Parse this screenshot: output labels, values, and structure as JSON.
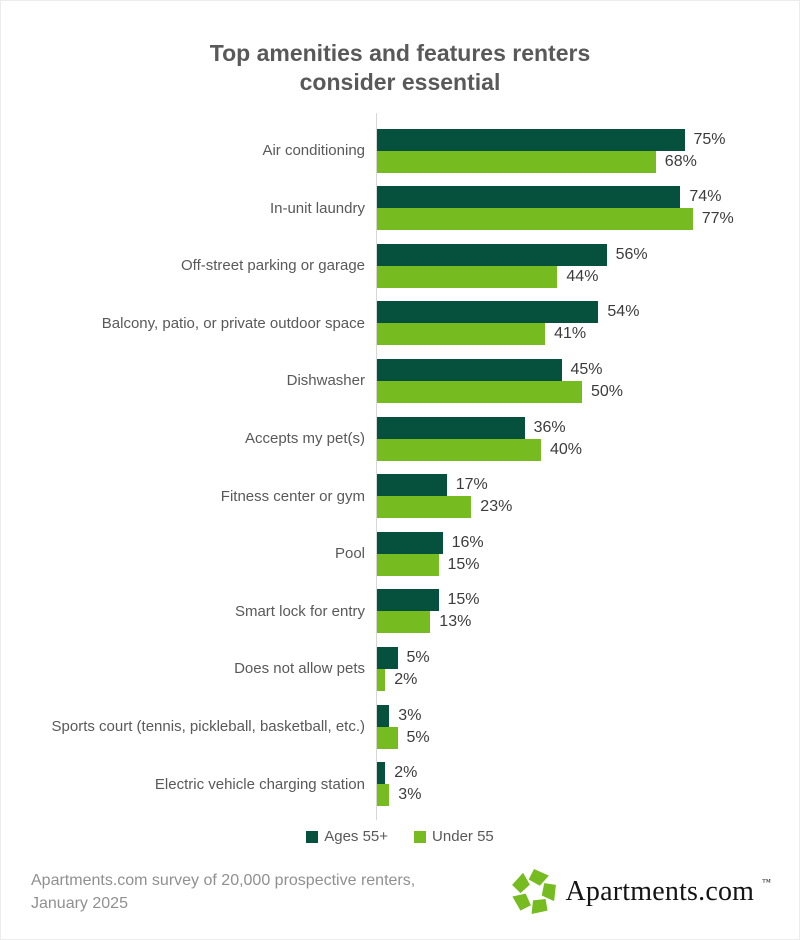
{
  "title_lines": [
    "Top amenities and features renters",
    "consider essential"
  ],
  "chart_data": {
    "type": "bar",
    "orientation": "horizontal",
    "title": "Top amenities and features renters consider essential",
    "categories": [
      "Air conditioning",
      "In-unit laundry",
      "Off-street parking or garage",
      "Balcony, patio, or private outdoor space",
      "Dishwasher",
      "Accepts my pet(s)",
      "Fitness center or gym",
      "Pool",
      "Smart lock for entry",
      "Does not allow pets",
      "Sports court (tennis, pickleball, basketball, etc.)",
      "Electric vehicle charging station"
    ],
    "series": [
      {
        "name": "Ages 55+",
        "color": "#05513e",
        "values": [
          75,
          74,
          56,
          54,
          45,
          36,
          17,
          16,
          15,
          5,
          3,
          2
        ]
      },
      {
        "name": "Under 55",
        "color": "#76bc21",
        "values": [
          68,
          77,
          44,
          41,
          50,
          40,
          23,
          15,
          13,
          2,
          5,
          3
        ]
      }
    ],
    "value_suffix": "%",
    "xlim": [
      0,
      100
    ],
    "grid": false,
    "legend_position": "bottom",
    "value_labels": true
  },
  "footer": {
    "source_line1": "Apartments.com survey of 20,000 prospective renters,",
    "source_line2": "January 2025",
    "logo_text": "Apartments.com",
    "logo_tm": "™"
  },
  "colors": {
    "series_dark": "#05513e",
    "series_light": "#76bc21",
    "title_text": "#595959",
    "category_text": "#595959",
    "value_text": "#3c3c3c",
    "source_text": "#909090",
    "axis_line": "#d6d6d6",
    "background": "#ffffff"
  }
}
